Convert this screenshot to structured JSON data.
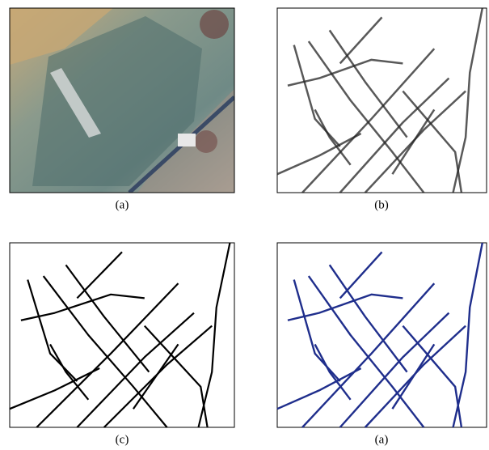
{
  "panels": [
    {
      "caption": "(a)"
    },
    {
      "caption": "(b)"
    },
    {
      "caption": "(c)"
    },
    {
      "caption": "(a)"
    }
  ]
}
